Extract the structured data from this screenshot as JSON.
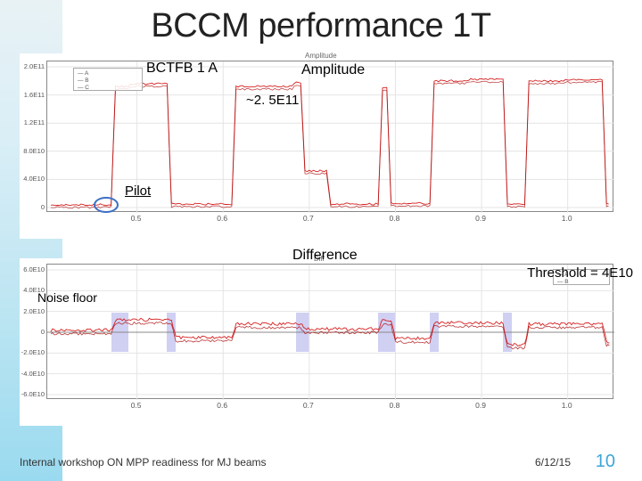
{
  "title": "BCCM performance 1T",
  "labels": {
    "bctfb": "BCTFB 1 A",
    "amplitude": "Amplitude",
    "approx": "~2. 5E11",
    "pilot": "Pilot",
    "difference": "Difference",
    "threshold": "Threshold = 4E10",
    "noise_floor": "Noise floor"
  },
  "footer": {
    "left": "Internal workshop ON MPP readiness for MJ beams",
    "date": "6/12/15",
    "page": "10"
  },
  "colors": {
    "trace": "#d62020",
    "trace2": "#b01515",
    "axis": "#555555",
    "grid": "#e4e4e4",
    "accent_blue": "#3d6fc4",
    "highlight": "#8a8ae6"
  },
  "chart_amplitude": {
    "type": "line",
    "title_small": "Amplitude",
    "x_range": [
      0.4,
      1.05
    ],
    "x_ticks": [
      0.5,
      0.6,
      0.7,
      0.8,
      0.9,
      1.0
    ],
    "y_range": [
      0,
      200000000000.0
    ],
    "y_ticks_labels": [
      "0",
      "4.0E10",
      "8.0E10",
      "1.2E11",
      "1.6E11",
      "2.0E11"
    ],
    "trace": [
      [
        0.4,
        4000000000.0
      ],
      [
        0.47,
        4000000000.0
      ],
      [
        0.475,
        172000000000.0
      ],
      [
        0.49,
        172000000000.0
      ],
      [
        0.495,
        176000000000.0
      ],
      [
        0.535,
        176000000000.0
      ],
      [
        0.54,
        5000000000.0
      ],
      [
        0.61,
        5000000000.0
      ],
      [
        0.615,
        172000000000.0
      ],
      [
        0.68,
        172000000000.0
      ],
      [
        0.685,
        178000000000.0
      ],
      [
        0.69,
        178000000000.0
      ],
      [
        0.695,
        52000000000.0
      ],
      [
        0.72,
        52000000000.0
      ],
      [
        0.725,
        5000000000.0
      ],
      [
        0.78,
        5000000000.0
      ],
      [
        0.785,
        170000000000.0
      ],
      [
        0.79,
        170000000000.0
      ],
      [
        0.795,
        6000000000.0
      ],
      [
        0.84,
        6000000000.0
      ],
      [
        0.845,
        180000000000.0
      ],
      [
        0.88,
        180000000000.0
      ],
      [
        0.885,
        182000000000.0
      ],
      [
        0.925,
        182000000000.0
      ],
      [
        0.93,
        5000000000.0
      ],
      [
        0.95,
        5000000000.0
      ],
      [
        0.955,
        180000000000.0
      ],
      [
        0.995,
        180000000000.0
      ],
      [
        1.0,
        182000000000.0
      ],
      [
        1.04,
        182000000000.0
      ],
      [
        1.045,
        5000000000.0
      ],
      [
        1.05,
        5000000000.0
      ]
    ],
    "pilot_circle_at": [
      0.465,
      3000000000.0
    ]
  },
  "chart_difference": {
    "type": "line",
    "title_small": "Diff",
    "x_range": [
      0.4,
      1.05
    ],
    "x_ticks": [
      0.5,
      0.6,
      0.7,
      0.8,
      0.9,
      1.0
    ],
    "y_range": [
      -60000000000.0,
      60000000000.0
    ],
    "y_ticks_labels": [
      "-6.0E10",
      "-4.0E10",
      "-2.0E10",
      "0",
      "2.0E10",
      "4.0E10",
      "6.0E10"
    ],
    "trace": [
      [
        0.4,
        2000000000.0
      ],
      [
        0.47,
        2000000000.0
      ],
      [
        0.475,
        12000000000.0
      ],
      [
        0.54,
        12000000000.0
      ],
      [
        0.545,
        -5000000000.0
      ],
      [
        0.61,
        -5000000000.0
      ],
      [
        0.615,
        8000000000.0
      ],
      [
        0.69,
        8000000000.0
      ],
      [
        0.695,
        3000000000.0
      ],
      [
        0.78,
        3000000000.0
      ],
      [
        0.785,
        11000000000.0
      ],
      [
        0.795,
        11000000000.0
      ],
      [
        0.8,
        -6000000000.0
      ],
      [
        0.84,
        -6000000000.0
      ],
      [
        0.845,
        9000000000.0
      ],
      [
        0.925,
        9000000000.0
      ],
      [
        0.93,
        -12000000000.0
      ],
      [
        0.95,
        -12000000000.0
      ],
      [
        0.955,
        8000000000.0
      ],
      [
        1.04,
        8000000000.0
      ],
      [
        1.045,
        -9000000000.0
      ],
      [
        1.05,
        -9000000000.0
      ]
    ],
    "highlights_x": [
      [
        0.47,
        0.49
      ],
      [
        0.535,
        0.545
      ],
      [
        0.685,
        0.7
      ],
      [
        0.78,
        0.8
      ],
      [
        0.84,
        0.85
      ],
      [
        0.925,
        0.935
      ]
    ]
  }
}
